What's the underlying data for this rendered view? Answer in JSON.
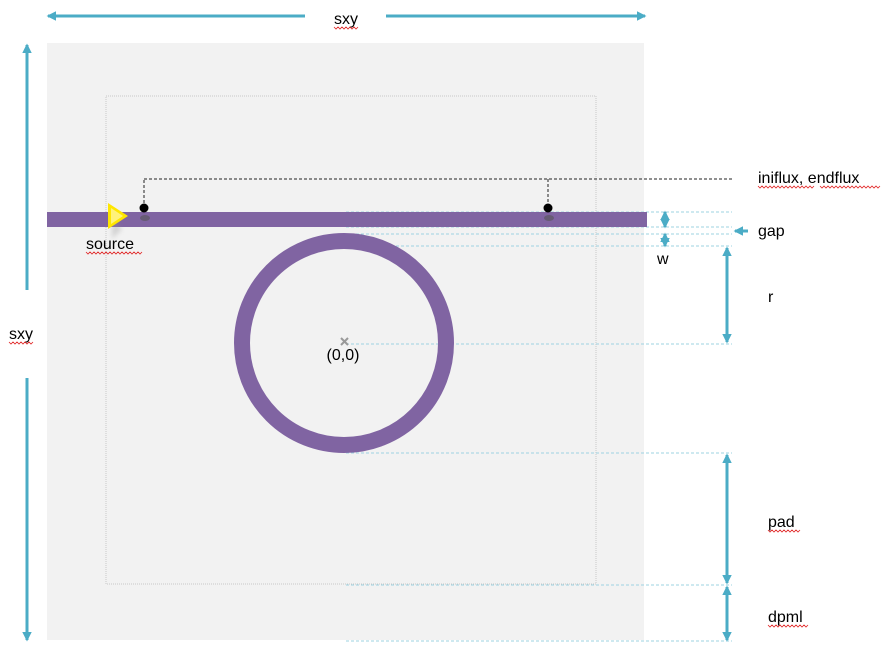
{
  "labels": {
    "sxy_top": "sxy",
    "sxy_left": "sxy",
    "flux": "iniflux, endflux",
    "source": "source",
    "gap": "gap",
    "w": "w",
    "r": "r",
    "origin": "(0,0)",
    "pad": "pad",
    "dpml": "dpml"
  },
  "colors": {
    "cell_background": "#f2f2f2",
    "pml_boundary": "#c8c8c8",
    "waveguide": "#8064a2",
    "ring": "#8064a2",
    "dimension_arrow": "#4bacc6",
    "guide_line": "#9dd3e2",
    "source_marker": "#ffe600",
    "flux_marker": "#000000",
    "origin_marker": "#999999"
  },
  "icons": {
    "source_marker": "yellow-triangle",
    "flux_points": "black-dot",
    "origin": "cross-mark"
  }
}
